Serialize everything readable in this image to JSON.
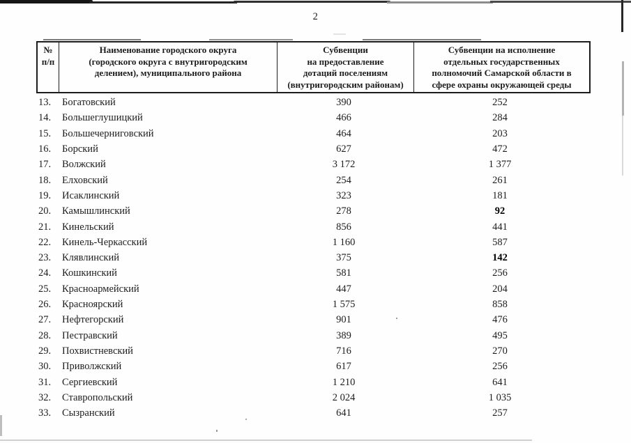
{
  "page": {
    "number": "2"
  },
  "table": {
    "headers": {
      "col_num": "№\nп/п",
      "col_name": "Наименование городского округа\n(городского округа с внутригородским\nделением), муниципального района",
      "col_subv1": "Субвенции\nна предоставление\nдотаций поселениям\n(внутригородским районам)",
      "col_subv2": "Субвенции на исполнение\nотдельных государственных\nполномочий Самарской области в\nсфере охраны окружающей среды"
    },
    "rows": [
      {
        "num": "13.",
        "name": "Богатовский",
        "subv1": "390",
        "subv2": "252"
      },
      {
        "num": "14.",
        "name": "Большеглушицкий",
        "subv1": "466",
        "subv2": "284"
      },
      {
        "num": "15.",
        "name": "Большечерниговский",
        "subv1": "464",
        "subv2": "203"
      },
      {
        "num": "16.",
        "name": "Борский",
        "subv1": "627",
        "subv2": "472"
      },
      {
        "num": "17.",
        "name": "Волжский",
        "subv1": "3 172",
        "subv2": "1 377"
      },
      {
        "num": "18.",
        "name": "Елховский",
        "subv1": "254",
        "subv2": "261"
      },
      {
        "num": "19.",
        "name": "Исаклинский",
        "subv1": "323",
        "subv2": "181"
      },
      {
        "num": "20.",
        "name": "Камышлинский",
        "subv1": "278",
        "subv2": "92",
        "subv2_strong": true
      },
      {
        "num": "21.",
        "name": "Кинельский",
        "subv1": "856",
        "subv2": "441"
      },
      {
        "num": "22.",
        "name": "Кинель-Черкасский",
        "subv1": "1 160",
        "subv2": "587"
      },
      {
        "num": "23.",
        "name": "Клявлинский",
        "subv1": "375",
        "subv2": "142",
        "subv2_strong": true
      },
      {
        "num": "24.",
        "name": "Кошкинский",
        "subv1": "581",
        "subv2": "256"
      },
      {
        "num": "25.",
        "name": "Красноармейский",
        "subv1": "447",
        "subv2": "204"
      },
      {
        "num": "26.",
        "name": "Красноярский",
        "subv1": "1 575",
        "subv2": "858"
      },
      {
        "num": "27.",
        "name": "Нефтегорский",
        "subv1": "901",
        "subv2": "476"
      },
      {
        "num": "28.",
        "name": "Пестравский",
        "subv1": "389",
        "subv2": "495"
      },
      {
        "num": "29.",
        "name": "Похвистневский",
        "subv1": "716",
        "subv2": "270"
      },
      {
        "num": "30.",
        "name": "Приволжский",
        "subv1": "617",
        "subv2": "256"
      },
      {
        "num": "31.",
        "name": "Сергиевский",
        "subv1": "1 210",
        "subv2": "641"
      },
      {
        "num": "32.",
        "name": "Ставропольский",
        "subv1": "2 024",
        "subv2": "1 035"
      },
      {
        "num": "33.",
        "name": "Сызранский",
        "subv1": "641",
        "subv2": "257"
      }
    ]
  }
}
